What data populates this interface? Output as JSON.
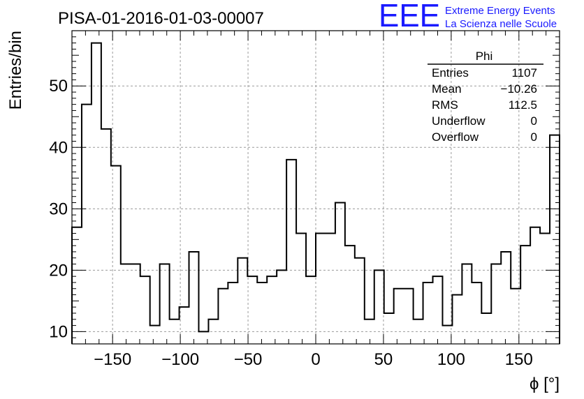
{
  "title": "PISA-01-2016-01-03-00007",
  "logo": {
    "letters": "EEE",
    "line1": "Extreme Energy Events",
    "line2": "La Scienza nelle Scuole",
    "color": "#1a1aff"
  },
  "stats": {
    "name": "Phi",
    "rows": [
      {
        "label": "Entries",
        "value": "1107"
      },
      {
        "label": "Mean",
        "value": "−10.26"
      },
      {
        "label": "RMS",
        "value": "112.5"
      },
      {
        "label": "Underflow",
        "value": "0"
      },
      {
        "label": "Overflow",
        "value": "0"
      }
    ]
  },
  "chart_data": {
    "type": "histogram",
    "title": "PISA-01-2016-01-03-00007",
    "xlabel": "ϕ [°]",
    "ylabel": "Entries/bin",
    "xlim": [
      -180,
      180
    ],
    "ylim": [
      8,
      59
    ],
    "bin_width": 7.2,
    "bin_low_edges": [
      -180,
      -172.8,
      -165.6,
      -158.4,
      -151.2,
      -144,
      -136.8,
      -129.6,
      -122.4,
      -115.2,
      -108,
      -100.8,
      -93.6,
      -86.4,
      -79.2,
      -72,
      -64.8,
      -57.6,
      -50.4,
      -43.2,
      -36,
      -28.8,
      -21.6,
      -14.4,
      -7.2,
      0,
      7.2,
      14.4,
      21.6,
      28.8,
      36,
      43.2,
      50.4,
      57.6,
      64.8,
      72,
      79.2,
      86.4,
      93.6,
      100.8,
      108,
      115.2,
      122.4,
      129.6,
      136.8,
      144,
      151.2,
      158.4,
      165.6,
      172.8
    ],
    "values": [
      27,
      47,
      57,
      43,
      37,
      21,
      21,
      19,
      11,
      21,
      12,
      14,
      23,
      10,
      12,
      17,
      18,
      22,
      19,
      18,
      19,
      20,
      38,
      26,
      19,
      26,
      26,
      31,
      24,
      22,
      12,
      20,
      13,
      17,
      17,
      12,
      18,
      19,
      11,
      16,
      21,
      18,
      13,
      21,
      23,
      17,
      24,
      27,
      26,
      42
    ],
    "xticks": [
      -150,
      -100,
      -50,
      0,
      50,
      100,
      150
    ],
    "xtick_labels": [
      "−150",
      "−100",
      "−50",
      "0",
      "50",
      "100",
      "150"
    ],
    "yticks": [
      10,
      20,
      30,
      40,
      50
    ],
    "ytick_labels": [
      "10",
      "20",
      "30",
      "40",
      "50"
    ],
    "grid": true,
    "line_color": "#000000"
  }
}
